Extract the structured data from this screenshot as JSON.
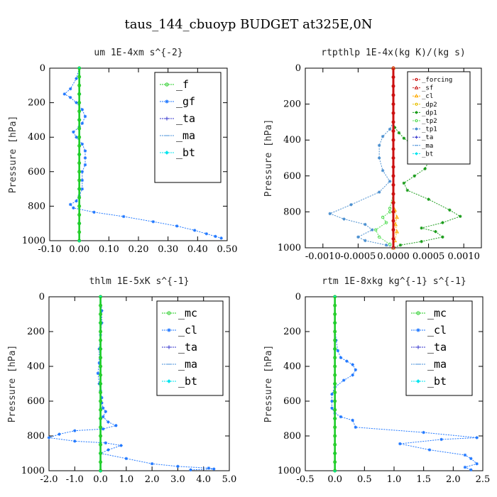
{
  "figure_title": "taus_144_cbuoyp  BUDGET at325E,0N",
  "chart_data": [
    {
      "type": "line",
      "title": "um  1E-4xm s^{-2}",
      "ylabel": "Pressure [hPa]",
      "xlabel": "",
      "xlim": [
        -0.1,
        0.5
      ],
      "ylim": [
        1000,
        0
      ],
      "xticks": [
        "-0.10",
        "0.00",
        "0.10",
        "0.20",
        "0.30",
        "0.40",
        "0.50"
      ],
      "xtick_values": [
        -0.1,
        0.0,
        0.1,
        0.2,
        0.3,
        0.4,
        0.5
      ],
      "yticks": [
        "0",
        "200",
        "400",
        "600",
        "800",
        "1000"
      ],
      "ytick_values": [
        0,
        200,
        400,
        600,
        800,
        1000
      ],
      "legend_style": "big",
      "legend": [
        {
          "name": "_f",
          "color": "#22cc22",
          "marker": "circle"
        },
        {
          "name": "_gf",
          "color": "#1f77ff",
          "marker": "star"
        },
        {
          "name": "_ta",
          "color": "#3333cc",
          "marker": "plus"
        },
        {
          "name": "_ma",
          "color": "#4a90d9",
          "marker": "dash"
        },
        {
          "name": "_bt",
          "color": "#00e5ee",
          "marker": "diamond"
        }
      ],
      "series": [
        {
          "name": "_gf",
          "color": "#1f77ff",
          "marker": "star",
          "x": [
            0.0,
            -0.01,
            -0.03,
            -0.05,
            -0.03,
            -0.01,
            0.01,
            0.02,
            0.01,
            0.0,
            -0.02,
            -0.01,
            0.01,
            0.02,
            0.02,
            0.02,
            0.01,
            0.01,
            0.01,
            0.0,
            -0.01,
            -0.03,
            -0.02,
            0.05,
            0.15,
            0.25,
            0.33,
            0.39,
            0.43,
            0.46,
            0.48
          ],
          "y": [
            0,
            60,
            120,
            150,
            170,
            200,
            240,
            280,
            320,
            340,
            370,
            400,
            440,
            480,
            520,
            560,
            600,
            650,
            700,
            740,
            770,
            790,
            810,
            835,
            860,
            890,
            915,
            940,
            960,
            975,
            985
          ]
        },
        {
          "name": "_bt",
          "color": "#00e5ee",
          "marker": "diamond",
          "x": [
            0.0,
            0.0,
            0.0,
            0.0,
            0.0,
            0.0,
            0.0
          ],
          "y": [
            0,
            150,
            300,
            500,
            700,
            900,
            1000
          ]
        },
        {
          "name": "_f",
          "color": "#22cc22",
          "marker": "circle",
          "x": [
            0.0,
            0.0,
            0.0,
            0.0,
            0.0,
            0.0,
            0.0,
            0.0,
            0.0,
            0.0,
            0.0,
            0.0,
            0.0,
            0.0,
            0.0,
            0.0,
            0.0,
            0.0,
            0.0,
            0.0,
            0.0
          ],
          "y": [
            0,
            50,
            100,
            150,
            200,
            250,
            300,
            350,
            400,
            450,
            500,
            550,
            600,
            650,
            700,
            750,
            800,
            850,
            900,
            950,
            1000
          ]
        }
      ]
    },
    {
      "type": "line",
      "title": "rtpthlp  1E-4x(kg K)/(kg s)",
      "ylabel": "Pressure [hPa]",
      "xlabel": "",
      "xlim": [
        -0.00125,
        0.00125
      ],
      "ylim": [
        1000,
        0
      ],
      "xticks": [
        "-0.0010",
        "-0.0005",
        "0.0000",
        "0.0005",
        "0.0010"
      ],
      "xtick_values": [
        -0.001,
        -0.0005,
        0.0,
        0.0005,
        0.001
      ],
      "yticks": [
        "0",
        "200",
        "400",
        "600",
        "800",
        "1000"
      ],
      "ytick_values": [
        0,
        200,
        400,
        600,
        800,
        1000
      ],
      "legend_style": "small",
      "legend": [
        {
          "name": "_forcing",
          "color": "#cc1111",
          "marker": "circle"
        },
        {
          "name": "_sf",
          "color": "#cc2222",
          "marker": "triangle"
        },
        {
          "name": "_cl",
          "color": "#ffaa00",
          "marker": "triangle"
        },
        {
          "name": "_dp2",
          "color": "#e8c000",
          "marker": "circle"
        },
        {
          "name": "_dp1",
          "color": "#1a9c1a",
          "marker": "star"
        },
        {
          "name": "_tp2",
          "color": "#55dd55",
          "marker": "circle"
        },
        {
          "name": "_tp1",
          "color": "#4a8fd0",
          "marker": "star"
        },
        {
          "name": "_ta",
          "color": "#3333cc",
          "marker": "plus"
        },
        {
          "name": "_ma",
          "color": "#4a90d9",
          "marker": "dash"
        },
        {
          "name": "_bt",
          "color": "#00e5ee",
          "marker": "diamond"
        }
      ],
      "series": [
        {
          "name": "_dp1",
          "color": "#1a9c1a",
          "marker": "star",
          "x": [
            0.0,
            0.0,
            0.0,
            2e-05,
            8e-05,
            0.00015,
            0.00025,
            0.00035,
            0.00045,
            0.0005,
            0.00045,
            0.0003,
            0.00015,
            0.0002,
            0.0005,
            0.0008,
            0.00095,
            0.0007,
            0.0004,
            0.0006,
            0.0007,
            0.0004,
            0.0001,
            0.0
          ],
          "y": [
            0,
            200,
            300,
            330,
            360,
            390,
            420,
            450,
            480,
            520,
            560,
            600,
            640,
            680,
            730,
            790,
            825,
            860,
            890,
            910,
            940,
            965,
            985,
            1000
          ]
        },
        {
          "name": "_tp1",
          "color": "#4a8fd0",
          "marker": "star",
          "x": [
            0.0,
            0.0,
            -5e-05,
            -0.00015,
            -0.0002,
            -0.0002,
            -0.00015,
            -5e-05,
            -0.0002,
            -0.0006,
            -0.0009,
            -0.0007,
            -0.0004,
            -0.0003,
            -0.0005,
            -0.0004,
            -0.0001,
            0.0
          ],
          "y": [
            0,
            300,
            340,
            380,
            430,
            500,
            570,
            630,
            690,
            760,
            810,
            840,
            870,
            900,
            940,
            960,
            985,
            1000
          ]
        },
        {
          "name": "_tp2",
          "color": "#55dd55",
          "marker": "circle",
          "x": [
            0.0,
            0.0,
            -5e-05,
            -5e-05,
            -0.00015,
            -0.0001,
            -0.00025,
            -0.0002,
            -5e-05,
            0.0
          ],
          "y": [
            0,
            700,
            780,
            800,
            830,
            860,
            900,
            940,
            980,
            1000
          ]
        },
        {
          "name": "_cl",
          "color": "#ffaa00",
          "marker": "triangle",
          "x": [
            0.0,
            0.0,
            2e-05,
            5e-05,
            3e-05,
            5e-05,
            2e-05,
            0.0
          ],
          "y": [
            0,
            740,
            790,
            830,
            870,
            910,
            960,
            1000
          ]
        },
        {
          "name": "_forcing",
          "color": "#cc1111",
          "marker": "circle",
          "x": [
            0.0,
            0.0,
            0.0,
            0.0,
            0.0,
            0.0,
            0.0,
            0.0,
            0.0,
            0.0,
            0.0,
            0.0,
            0.0,
            0.0,
            0.0,
            0.0,
            0.0,
            0.0,
            0.0,
            0.0,
            0.0
          ],
          "y": [
            0,
            50,
            100,
            150,
            200,
            250,
            300,
            350,
            400,
            450,
            500,
            550,
            600,
            650,
            700,
            750,
            800,
            850,
            900,
            950,
            1000
          ]
        }
      ]
    },
    {
      "type": "line",
      "title": "thlm  1E-5xK s^{-1}",
      "ylabel": "Pressure [hPa]",
      "xlabel": "",
      "xlim": [
        -2.0,
        5.0
      ],
      "ylim": [
        1000,
        0
      ],
      "xticks": [
        "-2.0",
        "-1.0",
        "0.0",
        "1.0",
        "2.0",
        "3.0",
        "4.0",
        "5.0"
      ],
      "xtick_values": [
        -2.0,
        -1.0,
        0.0,
        1.0,
        2.0,
        3.0,
        4.0,
        5.0
      ],
      "yticks": [
        "0",
        "200",
        "400",
        "600",
        "800",
        "1000"
      ],
      "ytick_values": [
        0,
        200,
        400,
        600,
        800,
        1000
      ],
      "legend_style": "big",
      "legend": [
        {
          "name": "_mc",
          "color": "#22cc22",
          "marker": "circle"
        },
        {
          "name": "_cl",
          "color": "#1f77ff",
          "marker": "star"
        },
        {
          "name": "_ta",
          "color": "#3333cc",
          "marker": "plus"
        },
        {
          "name": "_ma",
          "color": "#4a90d9",
          "marker": "dash"
        },
        {
          "name": "_bt",
          "color": "#00e5ee",
          "marker": "diamond"
        }
      ],
      "series": [
        {
          "name": "_cl",
          "color": "#1f77ff",
          "marker": "star",
          "x": [
            0.0,
            0.05,
            0.05,
            0.0,
            -0.05,
            -0.05,
            -0.1,
            -0.05,
            0.0,
            0.05,
            0.05,
            0.1,
            0.2,
            0.1,
            0.3,
            0.6,
            0.1,
            -1.0,
            -1.6,
            -2.0,
            -1.0,
            0.2,
            0.8,
            0.3,
            0.0,
            1.0,
            2.0,
            3.0,
            4.2,
            4.4,
            3.5
          ],
          "y": [
            0,
            80,
            150,
            220,
            300,
            380,
            440,
            500,
            540,
            580,
            610,
            640,
            660,
            690,
            720,
            740,
            760,
            770,
            790,
            810,
            830,
            840,
            855,
            880,
            900,
            930,
            960,
            975,
            985,
            990,
            995
          ]
        },
        {
          "name": "_bt",
          "color": "#00e5ee",
          "marker": "diamond",
          "x": [
            0.0,
            0.0,
            0.0,
            0.0,
            0.0,
            0.0,
            0.0
          ],
          "y": [
            0,
            150,
            300,
            500,
            700,
            900,
            1000
          ]
        },
        {
          "name": "_mc",
          "color": "#22cc22",
          "marker": "circle",
          "x": [
            0.0,
            0.0,
            0.0,
            0.0,
            0.0,
            0.0,
            0.0,
            0.0,
            0.0,
            0.0,
            0.0,
            0.0,
            0.0,
            0.0,
            0.0,
            0.0,
            0.0,
            0.0,
            0.0,
            0.0,
            0.0
          ],
          "y": [
            0,
            50,
            100,
            150,
            200,
            250,
            300,
            350,
            400,
            450,
            500,
            550,
            600,
            650,
            700,
            750,
            800,
            850,
            900,
            950,
            1000
          ]
        }
      ]
    },
    {
      "type": "line",
      "title": "rtm  1E-8xkg kg^{-1} s^{-1}",
      "ylabel": "Pressure [hPa]",
      "xlabel": "",
      "xlim": [
        -0.5,
        2.5
      ],
      "ylim": [
        1000,
        0
      ],
      "xticks": [
        "-0.5",
        "0.0",
        "0.5",
        "1.0",
        "1.5",
        "2.0",
        "2.5"
      ],
      "xtick_values": [
        -0.5,
        0.0,
        0.5,
        1.0,
        1.5,
        2.0,
        2.5
      ],
      "yticks": [
        "0",
        "200",
        "400",
        "600",
        "800",
        "1000"
      ],
      "ytick_values": [
        0,
        200,
        400,
        600,
        800,
        1000
      ],
      "legend_style": "big",
      "legend": [
        {
          "name": "_mc",
          "color": "#22cc22",
          "marker": "circle"
        },
        {
          "name": "_cl",
          "color": "#1f77ff",
          "marker": "star"
        },
        {
          "name": "_ta",
          "color": "#3333cc",
          "marker": "plus"
        },
        {
          "name": "_ma",
          "color": "#4a90d9",
          "marker": "dash"
        },
        {
          "name": "_bt",
          "color": "#00e5ee",
          "marker": "diamond"
        }
      ],
      "series": [
        {
          "name": "_cl",
          "color": "#1f77ff",
          "marker": "star",
          "x": [
            0.0,
            0.0,
            0.02,
            0.05,
            0.1,
            0.2,
            0.3,
            0.35,
            0.3,
            0.15,
            0.0,
            -0.05,
            -0.05,
            -0.05,
            0.0,
            0.1,
            0.3,
            0.35,
            1.5,
            2.4,
            1.8,
            1.1,
            1.6,
            2.2,
            2.3,
            2.4,
            2.2,
            2.3
          ],
          "y": [
            0,
            150,
            250,
            310,
            350,
            370,
            390,
            420,
            450,
            480,
            520,
            560,
            600,
            640,
            670,
            690,
            710,
            750,
            780,
            810,
            820,
            845,
            880,
            910,
            930,
            960,
            980,
            995
          ]
        },
        {
          "name": "_bt",
          "color": "#00e5ee",
          "marker": "diamond",
          "x": [
            0.0,
            0.0,
            0.0,
            0.0,
            0.0,
            0.0,
            0.0
          ],
          "y": [
            0,
            150,
            300,
            500,
            700,
            900,
            1000
          ]
        },
        {
          "name": "_mc",
          "color": "#22cc22",
          "marker": "circle",
          "x": [
            0.0,
            0.0,
            0.0,
            0.0,
            0.0,
            0.0,
            0.0,
            0.0,
            0.0,
            0.0,
            0.0,
            0.0,
            0.0,
            0.0,
            0.0,
            0.0,
            0.0,
            0.0,
            0.0,
            0.0,
            0.0
          ],
          "y": [
            0,
            50,
            100,
            150,
            200,
            250,
            300,
            350,
            400,
            450,
            500,
            550,
            600,
            650,
            700,
            750,
            800,
            850,
            900,
            950,
            1000
          ]
        }
      ]
    }
  ]
}
